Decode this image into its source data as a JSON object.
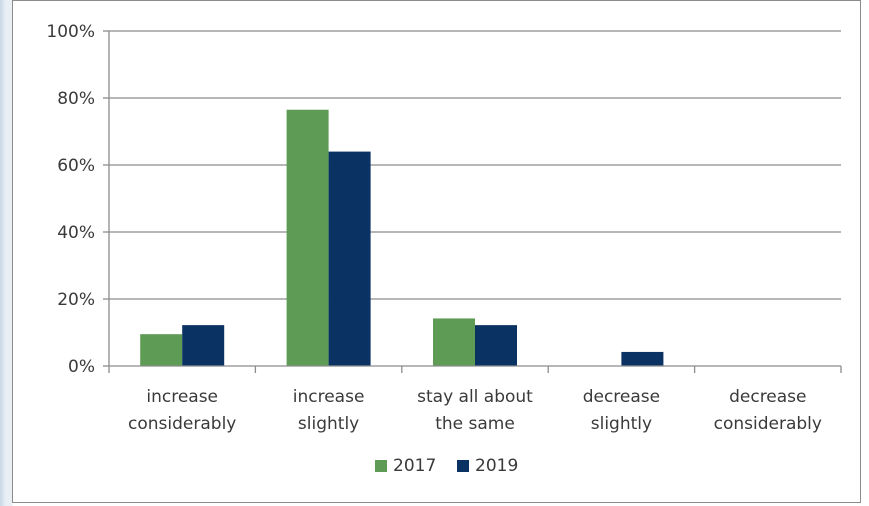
{
  "chart_data": {
    "type": "bar",
    "categories": [
      [
        "increase",
        "considerably"
      ],
      [
        "increase",
        "slightly"
      ],
      [
        "stay all about",
        "the same"
      ],
      [
        "decrease",
        "slightly"
      ],
      [
        "decrease",
        "considerably"
      ]
    ],
    "series": [
      {
        "name": "2017",
        "color": "#5e9c55",
        "values": [
          9.5,
          76.5,
          14.2,
          0,
          0
        ]
      },
      {
        "name": "2019",
        "color": "#0a3263",
        "values": [
          12.2,
          64.0,
          12.2,
          4.2,
          0
        ]
      }
    ],
    "ylim": [
      0,
      100
    ],
    "yticks": [
      0,
      20,
      40,
      60,
      80,
      100
    ],
    "ytick_labels": [
      "0%",
      "20%",
      "40%",
      "60%",
      "80%",
      "100%"
    ],
    "grid": true,
    "legend_position": "bottom",
    "colors": {
      "gridline": "#8c8c8c",
      "axis": "#8c8c8c",
      "text": "#3a3a3a"
    }
  }
}
